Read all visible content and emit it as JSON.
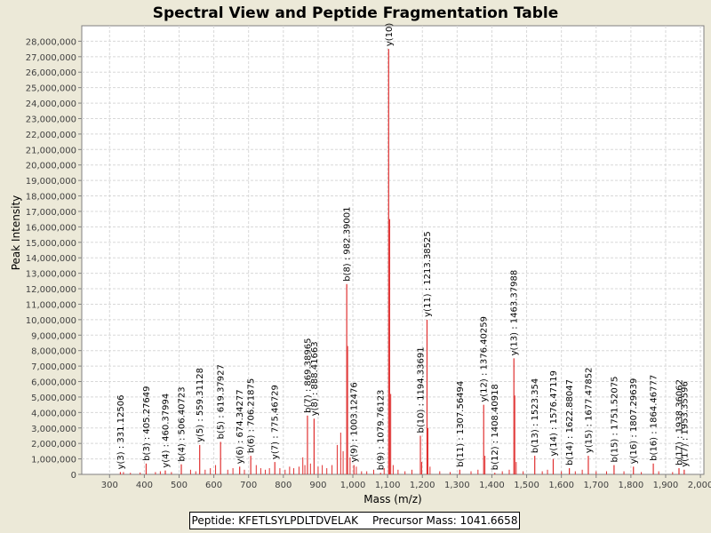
{
  "chart_data": {
    "type": "bar",
    "title": "Spectral View and Peptide Fragmentation Table",
    "xlabel": "Mass (m/z)",
    "ylabel": "Peak Intensity",
    "xlim": [
      220,
      2010
    ],
    "ylim": [
      0,
      29000000
    ],
    "xticks": [
      300,
      400,
      500,
      600,
      700,
      800,
      900,
      1000,
      1100,
      1200,
      1300,
      1400,
      1500,
      1600,
      1700,
      1800,
      1900,
      2000
    ],
    "xtick_labels": [
      "300",
      "400",
      "500",
      "600",
      "700",
      "800",
      "900",
      "1,000",
      "1,100",
      "1,200",
      "1,300",
      "1,400",
      "1,500",
      "1,600",
      "1,700",
      "1,800",
      "1,900",
      "2,000"
    ],
    "yticks": [
      0,
      1000000,
      2000000,
      3000000,
      4000000,
      5000000,
      6000000,
      7000000,
      8000000,
      9000000,
      10000000,
      11000000,
      12000000,
      13000000,
      14000000,
      15000000,
      16000000,
      17000000,
      18000000,
      19000000,
      20000000,
      21000000,
      22000000,
      23000000,
      24000000,
      25000000,
      26000000,
      27000000,
      28000000
    ],
    "ytick_labels": [
      "0",
      "1,000,000",
      "2,000,000",
      "3,000,000",
      "4,000,000",
      "5,000,000",
      "6,000,000",
      "7,000,000",
      "8,000,000",
      "9,000,000",
      "10,000,000",
      "11,000,000",
      "12,000,000",
      "13,000,000",
      "14,000,000",
      "15,000,000",
      "16,000,000",
      "17,000,000",
      "18,000,000",
      "19,000,000",
      "20,000,000",
      "21,000,000",
      "22,000,000",
      "23,000,000",
      "24,000,000",
      "25,000,000",
      "26,000,000",
      "27,000,000",
      "28,000,000"
    ],
    "grid": true,
    "peak_color": "#e03030",
    "annotated_peaks": [
      {
        "mz": 331.12506,
        "intensity": 150000,
        "label": "y(3) : 331.12506"
      },
      {
        "mz": 405.27649,
        "intensity": 700000,
        "label": "b(3) : 405.27649"
      },
      {
        "mz": 460.37994,
        "intensity": 250000,
        "label": "y(4) : 460.37994"
      },
      {
        "mz": 506.40723,
        "intensity": 650000,
        "label": "b(4) : 506.40723"
      },
      {
        "mz": 559.31128,
        "intensity": 1900000,
        "label": "y(5) : 559.31128"
      },
      {
        "mz": 619.37927,
        "intensity": 2100000,
        "label": "b(5) : 619.37927"
      },
      {
        "mz": 674.34277,
        "intensity": 500000,
        "label": "y(6) : 674.34277"
      },
      {
        "mz": 706.21875,
        "intensity": 1200000,
        "label": "b(6) : 706.21875"
      },
      {
        "mz": 775.46729,
        "intensity": 800000,
        "label": "y(7) : 775.46729"
      },
      {
        "mz": 869.38965,
        "intensity": 3800000,
        "label": "b(7) : 869.38965"
      },
      {
        "mz": 888.41663,
        "intensity": 3600000,
        "label": "y(8) : 888.41663"
      },
      {
        "mz": 982.39001,
        "intensity": 12300000,
        "label": "b(8) : 982.39001"
      },
      {
        "mz": 1003.12476,
        "intensity": 600000,
        "label": "y(9) : 1003.12476"
      },
      {
        "mz": 1079.76123,
        "intensity": 100000,
        "label": "b(9) : 1079.76123"
      },
      {
        "mz": 1103.0,
        "intensity": 27500000,
        "label": "y(10)"
      },
      {
        "mz": 1194.33691,
        "intensity": 2500000,
        "label": "b(10) : 1194.33691"
      },
      {
        "mz": 1213.38525,
        "intensity": 10000000,
        "label": "y(11) : 1213.38525"
      },
      {
        "mz": 1307.56494,
        "intensity": 300000,
        "label": "b(11) : 1307.56494"
      },
      {
        "mz": 1376.40259,
        "intensity": 4500000,
        "label": "y(12) : 1376.40259"
      },
      {
        "mz": 1408.40918,
        "intensity": 100000,
        "label": "b(12) : 1408.40918"
      },
      {
        "mz": 1463.37988,
        "intensity": 7500000,
        "label": "y(13) : 1463.37988"
      },
      {
        "mz": 1523.354,
        "intensity": 1200000,
        "label": "b(13) : 1523.354"
      },
      {
        "mz": 1576.47119,
        "intensity": 1000000,
        "label": "y(14) : 1576.47119"
      },
      {
        "mz": 1622.88047,
        "intensity": 400000,
        "label": "b(14) : 1622.88047"
      },
      {
        "mz": 1677.47852,
        "intensity": 1200000,
        "label": "y(15) : 1677.47852"
      },
      {
        "mz": 1751.52075,
        "intensity": 600000,
        "label": "b(15) : 1751.52075"
      },
      {
        "mz": 1807.29639,
        "intensity": 500000,
        "label": "y(16) : 1807.29639"
      },
      {
        "mz": 1864.46777,
        "intensity": 700000,
        "label": "b(16) : 1864.46777"
      },
      {
        "mz": 1938.36062,
        "intensity": 400000,
        "label": "b(17) : 1938.36062"
      },
      {
        "mz": 1953.35596,
        "intensity": 300000,
        "label": "y(17) : 1953.35596"
      }
    ],
    "other_peaks": [
      {
        "mz": 340,
        "intensity": 150000
      },
      {
        "mz": 360,
        "intensity": 100000
      },
      {
        "mz": 388,
        "intensity": 120000
      },
      {
        "mz": 432,
        "intensity": 150000
      },
      {
        "mz": 446,
        "intensity": 200000
      },
      {
        "mz": 478,
        "intensity": 150000
      },
      {
        "mz": 533,
        "intensity": 300000
      },
      {
        "mz": 548,
        "intensity": 200000
      },
      {
        "mz": 575,
        "intensity": 300000
      },
      {
        "mz": 590,
        "intensity": 400000
      },
      {
        "mz": 605,
        "intensity": 600000
      },
      {
        "mz": 640,
        "intensity": 300000
      },
      {
        "mz": 655,
        "intensity": 400000
      },
      {
        "mz": 688,
        "intensity": 300000
      },
      {
        "mz": 722,
        "intensity": 600000
      },
      {
        "mz": 735,
        "intensity": 400000
      },
      {
        "mz": 748,
        "intensity": 300000
      },
      {
        "mz": 760,
        "intensity": 400000
      },
      {
        "mz": 790,
        "intensity": 400000
      },
      {
        "mz": 805,
        "intensity": 300000
      },
      {
        "mz": 818,
        "intensity": 500000
      },
      {
        "mz": 830,
        "intensity": 400000
      },
      {
        "mz": 845,
        "intensity": 500000
      },
      {
        "mz": 856,
        "intensity": 1100000
      },
      {
        "mz": 862,
        "intensity": 600000
      },
      {
        "mz": 878,
        "intensity": 700000
      },
      {
        "mz": 900,
        "intensity": 500000
      },
      {
        "mz": 912,
        "intensity": 600000
      },
      {
        "mz": 925,
        "intensity": 400000
      },
      {
        "mz": 940,
        "intensity": 600000
      },
      {
        "mz": 955,
        "intensity": 1900000
      },
      {
        "mz": 965,
        "intensity": 2700000
      },
      {
        "mz": 972,
        "intensity": 1500000
      },
      {
        "mz": 985,
        "intensity": 8300000
      },
      {
        "mz": 992,
        "intensity": 1100000
      },
      {
        "mz": 1010,
        "intensity": 500000
      },
      {
        "mz": 1025,
        "intensity": 200000
      },
      {
        "mz": 1040,
        "intensity": 200000
      },
      {
        "mz": 1060,
        "intensity": 300000
      },
      {
        "mz": 1090,
        "intensity": 400000
      },
      {
        "mz": 1106,
        "intensity": 16500000
      },
      {
        "mz": 1109,
        "intensity": 5200000
      },
      {
        "mz": 1116,
        "intensity": 600000
      },
      {
        "mz": 1130,
        "intensity": 300000
      },
      {
        "mz": 1150,
        "intensity": 200000
      },
      {
        "mz": 1170,
        "intensity": 300000
      },
      {
        "mz": 1198,
        "intensity": 800000
      },
      {
        "mz": 1216,
        "intensity": 3000000
      },
      {
        "mz": 1222,
        "intensity": 500000
      },
      {
        "mz": 1250,
        "intensity": 200000
      },
      {
        "mz": 1280,
        "intensity": 150000
      },
      {
        "mz": 1340,
        "intensity": 200000
      },
      {
        "mz": 1360,
        "intensity": 300000
      },
      {
        "mz": 1380,
        "intensity": 1200000
      },
      {
        "mz": 1430,
        "intensity": 200000
      },
      {
        "mz": 1450,
        "intensity": 300000
      },
      {
        "mz": 1466,
        "intensity": 5100000
      },
      {
        "mz": 1470,
        "intensity": 800000
      },
      {
        "mz": 1490,
        "intensity": 200000
      },
      {
        "mz": 1545,
        "intensity": 200000
      },
      {
        "mz": 1560,
        "intensity": 300000
      },
      {
        "mz": 1600,
        "intensity": 200000
      },
      {
        "mz": 1640,
        "intensity": 200000
      },
      {
        "mz": 1660,
        "intensity": 300000
      },
      {
        "mz": 1700,
        "intensity": 200000
      },
      {
        "mz": 1730,
        "intensity": 200000
      },
      {
        "mz": 1780,
        "intensity": 200000
      },
      {
        "mz": 1830,
        "intensity": 150000
      },
      {
        "mz": 1880,
        "intensity": 200000
      },
      {
        "mz": 1920,
        "intensity": 150000
      }
    ]
  },
  "footer": {
    "peptide_text": "Peptide: KFETLSYLPDLTDVELAK",
    "precursor_text": "Precursor Mass: 1041.6658"
  }
}
